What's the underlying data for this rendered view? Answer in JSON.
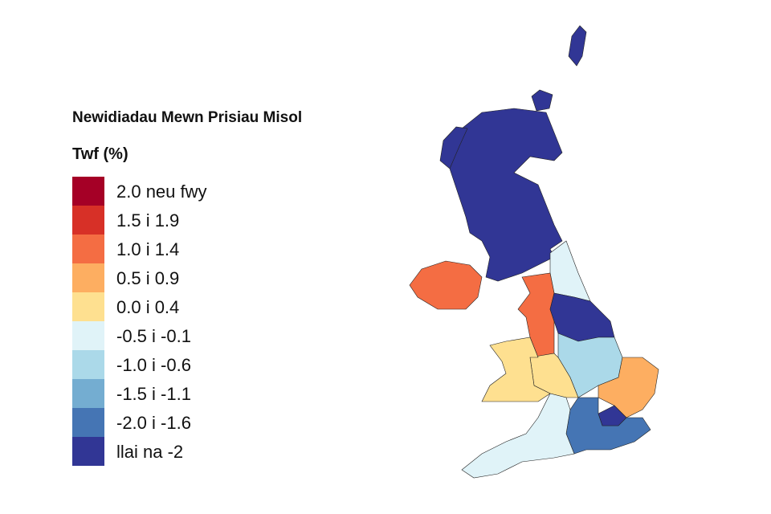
{
  "title": "Newidiadau Mewn Prisiau Misol",
  "legend": {
    "title": "Twf (%)",
    "items": [
      {
        "label": "2.0 neu fwy",
        "color": "#a50026"
      },
      {
        "label": "1.5 i 1.9",
        "color": "#d73027"
      },
      {
        "label": "1.0 i 1.4",
        "color": "#f46d43"
      },
      {
        "label": "0.5 i 0.9",
        "color": "#fdae61"
      },
      {
        "label": "0.0 i 0.4",
        "color": "#fee090"
      },
      {
        "label": "-0.5 i -0.1",
        "color": "#e0f3f8"
      },
      {
        "label": "-1.0 i -0.6",
        "color": "#abd9e9"
      },
      {
        "label": "-1.5 i -1.1",
        "color": "#74add1"
      },
      {
        "label": "-2.0 i -1.6",
        "color": "#4575b4"
      },
      {
        "label": "llai na -2",
        "color": "#313695"
      }
    ]
  }
}
